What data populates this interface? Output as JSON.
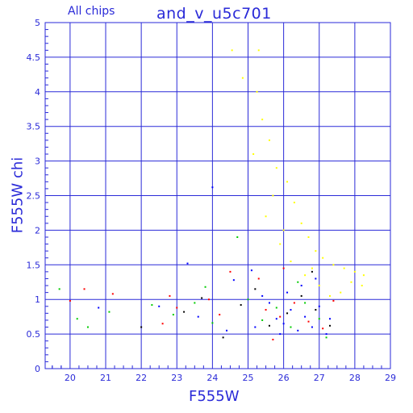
{
  "header": {
    "subtitle": "All chips",
    "title": "and_v_u5c701"
  },
  "chart_data": {
    "type": "scatter",
    "title": "and_v_u5c701",
    "subtitle": "All chips",
    "xlabel": "F555W",
    "ylabel": "F555W chi",
    "xlim": [
      19.3,
      29
    ],
    "ylim": [
      0,
      5
    ],
    "xticks": [
      20,
      21,
      22,
      23,
      24,
      25,
      26,
      27,
      28,
      29
    ],
    "yticks": [
      0,
      0.5,
      1,
      1.5,
      2,
      2.5,
      3,
      3.5,
      4,
      4.5,
      5
    ],
    "xtick_labels": [
      "20",
      "21",
      "22",
      "23",
      "24",
      "25",
      "26",
      "27",
      "28",
      "29"
    ],
    "ytick_labels": [
      "0",
      "0.5",
      "1",
      "1.5",
      "2",
      "2.5",
      "3",
      "3.5",
      "4",
      "4.5",
      "5"
    ],
    "grid": true,
    "colors": {
      "axis": "#2a2ad8",
      "grid": "#2a2ad8"
    },
    "series": [
      {
        "color": "#0000ff",
        "values": [
          [
            24.0,
            2.62
          ],
          [
            23.3,
            1.52
          ],
          [
            24.6,
            1.28
          ],
          [
            25.1,
            1.42
          ],
          [
            25.4,
            1.05
          ],
          [
            25.6,
            0.95
          ],
          [
            25.8,
            0.72
          ],
          [
            26.0,
            0.65
          ],
          [
            26.2,
            0.85
          ],
          [
            26.4,
            0.55
          ],
          [
            26.6,
            0.75
          ],
          [
            26.8,
            0.6
          ],
          [
            27.0,
            0.9
          ],
          [
            27.2,
            0.5
          ],
          [
            26.5,
            1.2
          ],
          [
            26.9,
            1.3
          ],
          [
            25.2,
            0.6
          ],
          [
            25.9,
            0.5
          ],
          [
            22.5,
            0.9
          ],
          [
            23.6,
            0.75
          ],
          [
            20.8,
            0.88
          ],
          [
            24.4,
            0.55
          ],
          [
            27.3,
            0.72
          ],
          [
            26.1,
            1.1
          ]
        ]
      },
      {
        "color": "#ff0000",
        "values": [
          [
            20.4,
            1.15
          ],
          [
            20.0,
            0.98
          ],
          [
            21.2,
            1.08
          ],
          [
            22.8,
            1.05
          ],
          [
            23.9,
            1.0
          ],
          [
            24.5,
            1.4
          ],
          [
            25.3,
            1.3
          ],
          [
            25.5,
            0.85
          ],
          [
            25.9,
            0.75
          ],
          [
            26.3,
            0.95
          ],
          [
            26.7,
            0.68
          ],
          [
            27.1,
            0.58
          ],
          [
            24.2,
            0.78
          ],
          [
            23.0,
            0.88
          ],
          [
            22.6,
            0.65
          ],
          [
            26.0,
            1.45
          ],
          [
            27.4,
            0.98
          ],
          [
            25.7,
            0.42
          ]
        ]
      },
      {
        "color": "#00cc00",
        "values": [
          [
            19.7,
            1.15
          ],
          [
            20.2,
            0.72
          ],
          [
            20.5,
            0.6
          ],
          [
            21.1,
            0.82
          ],
          [
            22.3,
            0.92
          ],
          [
            23.5,
            0.95
          ],
          [
            24.7,
            1.9
          ],
          [
            25.0,
            1.0
          ],
          [
            25.4,
            0.7
          ],
          [
            25.8,
            0.88
          ],
          [
            26.2,
            0.6
          ],
          [
            26.6,
            0.95
          ],
          [
            27.0,
            0.72
          ],
          [
            24.0,
            0.66
          ],
          [
            22.9,
            0.78
          ],
          [
            26.4,
            1.25
          ],
          [
            23.8,
            1.18
          ],
          [
            27.2,
            0.45
          ]
        ]
      },
      {
        "color": "#000000",
        "values": [
          [
            22.0,
            0.6
          ],
          [
            23.7,
            1.02
          ],
          [
            24.8,
            0.92
          ],
          [
            25.2,
            1.15
          ],
          [
            25.6,
            0.62
          ],
          [
            26.1,
            0.8
          ],
          [
            26.5,
            1.05
          ],
          [
            26.9,
            0.85
          ],
          [
            27.3,
            0.62
          ],
          [
            24.3,
            0.45
          ],
          [
            23.2,
            0.82
          ],
          [
            26.8,
            1.4
          ]
        ]
      },
      {
        "color": "#ffff00",
        "values": [
          [
            24.55,
            4.6
          ],
          [
            24.85,
            4.2
          ],
          [
            25.3,
            4.6
          ],
          [
            25.25,
            4.0
          ],
          [
            25.4,
            3.6
          ],
          [
            25.6,
            3.3
          ],
          [
            25.15,
            3.1
          ],
          [
            25.8,
            2.9
          ],
          [
            26.1,
            2.7
          ],
          [
            26.3,
            2.4
          ],
          [
            26.5,
            2.1
          ],
          [
            26.7,
            1.9
          ],
          [
            26.9,
            1.7
          ],
          [
            27.1,
            1.6
          ],
          [
            27.4,
            1.5
          ],
          [
            27.7,
            1.45
          ],
          [
            28.0,
            1.4
          ],
          [
            28.25,
            1.35
          ],
          [
            25.5,
            2.2
          ],
          [
            25.9,
            1.8
          ],
          [
            26.2,
            1.55
          ],
          [
            26.6,
            1.35
          ],
          [
            27.0,
            1.2
          ],
          [
            27.3,
            1.05
          ],
          [
            27.6,
            1.1
          ],
          [
            27.9,
            1.25
          ],
          [
            28.2,
            1.2
          ],
          [
            25.7,
            2.5
          ],
          [
            26.0,
            2.0
          ],
          [
            26.8,
            1.45
          ]
        ]
      }
    ]
  }
}
